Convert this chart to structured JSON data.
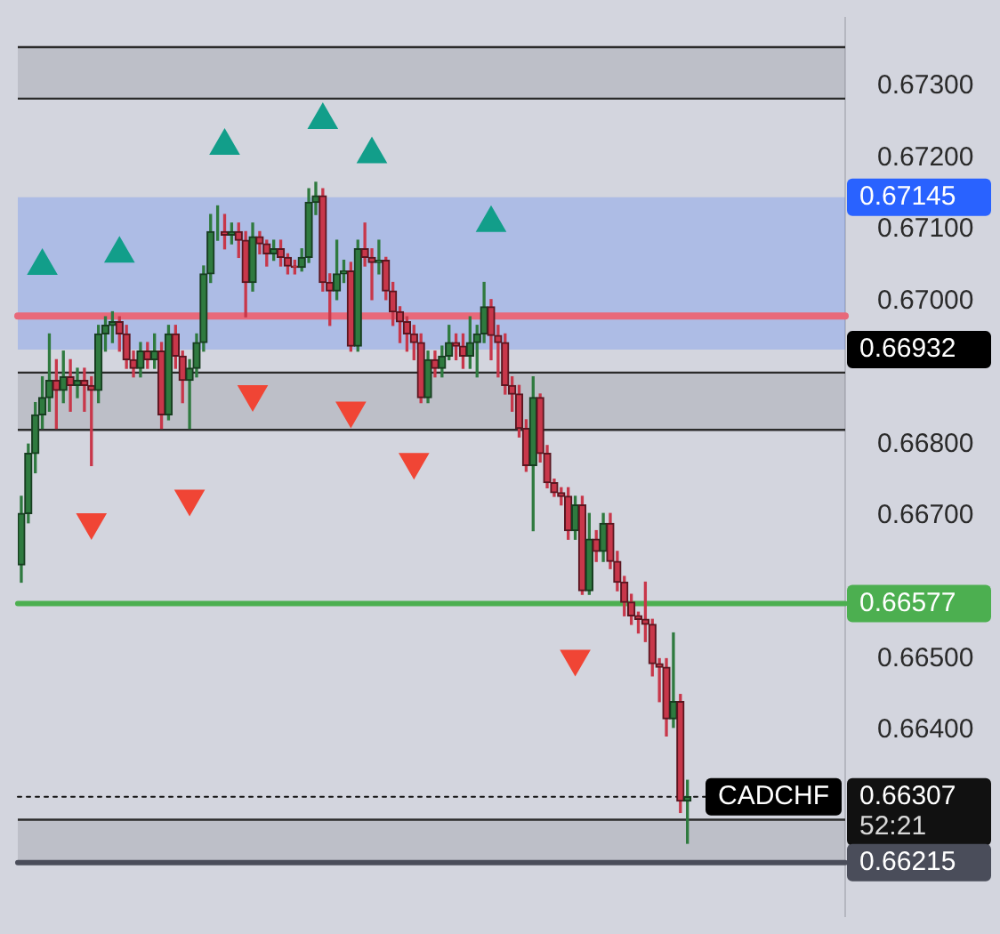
{
  "chart_data": {
    "type": "candlestick",
    "categories": [
      null,
      null,
      null,
      null,
      null,
      null,
      null,
      null,
      null,
      null,
      null,
      null,
      null,
      null,
      null,
      null,
      null,
      null,
      null,
      null,
      null,
      null,
      null,
      null,
      null,
      null,
      null,
      null,
      null,
      null,
      null,
      null,
      null,
      null,
      null,
      null,
      null,
      null,
      null,
      null,
      null,
      null,
      null,
      null,
      null,
      null,
      null,
      null,
      null,
      null,
      null,
      null,
      null,
      null,
      null,
      null,
      null,
      null,
      null,
      null,
      null,
      null,
      null,
      null,
      null,
      null,
      null,
      null,
      null,
      null,
      null,
      null,
      null,
      null,
      null,
      null,
      null,
      null,
      null,
      null,
      null,
      null,
      null,
      null,
      null,
      null,
      null,
      null,
      null,
      null,
      null,
      null,
      null,
      null,
      null,
      null,
      null,
      null,
      null,
      null,
      null,
      null,
      null,
      null,
      null,
      null,
      null,
      null,
      null,
      null,
      null,
      null,
      null,
      null,
      null,
      null,
      null,
      null
    ],
    "ohlc": [
      [
        0.66631,
        0.66727,
        0.66607,
        0.66703
      ],
      [
        0.66703,
        0.668,
        0.6669,
        0.66787
      ],
      [
        0.66787,
        0.66858,
        0.6676,
        0.66841
      ],
      [
        0.66841,
        0.66894,
        0.66822,
        0.66865
      ],
      [
        0.66865,
        0.66954,
        0.66846,
        0.66889
      ],
      [
        0.66889,
        0.66918,
        0.66822,
        0.66875
      ],
      [
        0.66875,
        0.6693,
        0.66858,
        0.66894
      ],
      [
        0.66894,
        0.66918,
        0.66846,
        0.66882
      ],
      [
        0.66882,
        0.66906,
        0.66865,
        0.66889
      ],
      [
        0.66889,
        0.66906,
        0.66846,
        0.66882
      ],
      [
        0.66882,
        0.66894,
        0.6677,
        0.66875
      ],
      [
        0.66875,
        0.66966,
        0.66858,
        0.66954
      ],
      [
        0.66954,
        0.66978,
        0.6693,
        0.66966
      ],
      [
        0.66966,
        0.66985,
        0.66942,
        0.66971
      ],
      [
        0.66971,
        0.66978,
        0.6693,
        0.66954
      ],
      [
        0.66954,
        0.66966,
        0.66906,
        0.66918
      ],
      [
        0.66918,
        0.6693,
        0.66894,
        0.66906
      ],
      [
        0.66906,
        0.66942,
        0.66894,
        0.6693
      ],
      [
        0.6693,
        0.66942,
        0.66906,
        0.66918
      ],
      [
        0.66918,
        0.66954,
        0.66906,
        0.6693
      ],
      [
        0.6693,
        0.66942,
        0.66822,
        0.66841
      ],
      [
        0.66841,
        0.66966,
        0.66834,
        0.66954
      ],
      [
        0.66954,
        0.66966,
        0.66906,
        0.66923
      ],
      [
        0.66923,
        0.6693,
        0.66858,
        0.66889
      ],
      [
        0.66889,
        0.66918,
        0.66822,
        0.66906
      ],
      [
        0.66906,
        0.66954,
        0.66894,
        0.66942
      ],
      [
        0.66942,
        0.67049,
        0.6693,
        0.67038
      ],
      [
        0.67038,
        0.67121,
        0.67026,
        0.67097
      ],
      [
        0.67097,
        0.67133,
        0.67085,
        0.67097
      ],
      [
        0.67097,
        0.67121,
        0.67073,
        0.67092
      ],
      [
        0.67092,
        0.67109,
        0.6708,
        0.67097
      ],
      [
        0.67097,
        0.67109,
        0.67061,
        0.67085
      ],
      [
        0.67085,
        0.67097,
        0.66978,
        0.67026
      ],
      [
        0.67026,
        0.67109,
        0.67014,
        0.6709
      ],
      [
        0.6709,
        0.67097,
        0.67066,
        0.6708
      ],
      [
        0.6708,
        0.67085,
        0.67049,
        0.67066
      ],
      [
        0.67066,
        0.67085,
        0.67057,
        0.67073
      ],
      [
        0.67073,
        0.67085,
        0.67049,
        0.67061
      ],
      [
        0.67061,
        0.67066,
        0.67038,
        0.67049
      ],
      [
        0.67049,
        0.67057,
        0.67038,
        0.67047
      ],
      [
        0.67047,
        0.67073,
        0.67042,
        0.67061
      ],
      [
        0.67061,
        0.67157,
        0.67054,
        0.67138
      ],
      [
        0.67138,
        0.67166,
        0.67121,
        0.67147
      ],
      [
        0.67147,
        0.67157,
        0.67014,
        0.67026
      ],
      [
        0.67026,
        0.67038,
        0.66966,
        0.67014
      ],
      [
        0.67014,
        0.67085,
        0.67002,
        0.67038
      ],
      [
        0.67038,
        0.67057,
        0.67026,
        0.67042
      ],
      [
        0.67042,
        0.67054,
        0.6693,
        0.66937
      ],
      [
        0.66937,
        0.67085,
        0.6693,
        0.67073
      ],
      [
        0.67073,
        0.67109,
        0.67049,
        0.67061
      ],
      [
        0.67061,
        0.67073,
        0.67002,
        0.67054
      ],
      [
        0.67054,
        0.67085,
        0.67038,
        0.67057
      ],
      [
        0.67057,
        0.67061,
        0.67002,
        0.67014
      ],
      [
        0.67014,
        0.67026,
        0.66966,
        0.66985
      ],
      [
        0.66985,
        0.66992,
        0.66942,
        0.66971
      ],
      [
        0.66971,
        0.66978,
        0.6693,
        0.66954
      ],
      [
        0.66954,
        0.66966,
        0.66918,
        0.66942
      ],
      [
        0.66942,
        0.66954,
        0.66858,
        0.66865
      ],
      [
        0.66865,
        0.6693,
        0.66858,
        0.66918
      ],
      [
        0.66918,
        0.6693,
        0.66894,
        0.66906
      ],
      [
        0.66906,
        0.66937,
        0.66894,
        0.66923
      ],
      [
        0.66923,
        0.66966,
        0.66918,
        0.66942
      ],
      [
        0.66942,
        0.66954,
        0.66918,
        0.66937
      ],
      [
        0.66937,
        0.66954,
        0.66906,
        0.66923
      ],
      [
        0.66923,
        0.66978,
        0.66906,
        0.66942
      ],
      [
        0.66942,
        0.66966,
        0.66894,
        0.66954
      ],
      [
        0.66954,
        0.67026,
        0.66942,
        0.66992
      ],
      [
        0.66992,
        0.67002,
        0.66918,
        0.66952
      ],
      [
        0.66952,
        0.66966,
        0.66894,
        0.66942
      ],
      [
        0.66942,
        0.66954,
        0.6687,
        0.66882
      ],
      [
        0.66882,
        0.66894,
        0.66846,
        0.6687
      ],
      [
        0.6687,
        0.66882,
        0.6681,
        0.66822
      ],
      [
        0.66822,
        0.66834,
        0.66762,
        0.6677
      ],
      [
        0.6677,
        0.66894,
        0.66679,
        0.66865
      ],
      [
        0.66865,
        0.6687,
        0.66775,
        0.66787
      ],
      [
        0.66787,
        0.66798,
        0.66739,
        0.66746
      ],
      [
        0.66746,
        0.66751,
        0.66727,
        0.66732
      ],
      [
        0.66732,
        0.66739,
        0.66715,
        0.66727
      ],
      [
        0.66727,
        0.66739,
        0.66667,
        0.66679
      ],
      [
        0.66679,
        0.66727,
        0.66667,
        0.66715
      ],
      [
        0.66715,
        0.66727,
        0.6659,
        0.66595
      ],
      [
        0.66595,
        0.66703,
        0.6659,
        0.66667
      ],
      [
        0.66667,
        0.66679,
        0.66636,
        0.6665
      ],
      [
        0.6665,
        0.66703,
        0.66636,
        0.66689
      ],
      [
        0.66689,
        0.66703,
        0.66626,
        0.66636
      ],
      [
        0.66636,
        0.6665,
        0.66595,
        0.66607
      ],
      [
        0.66607,
        0.66615,
        0.6656,
        0.66579
      ],
      [
        0.66579,
        0.6659,
        0.66548,
        0.6656
      ],
      [
        0.6656,
        0.66565,
        0.66536,
        0.66555
      ],
      [
        0.66555,
        0.66607,
        0.66524,
        0.66548
      ],
      [
        0.66548,
        0.66555,
        0.66476,
        0.66493
      ],
      [
        0.66493,
        0.665,
        0.6644,
        0.66488
      ],
      [
        0.66488,
        0.665,
        0.66392,
        0.66416
      ],
      [
        0.66416,
        0.66536,
        0.66404,
        0.6644
      ],
      [
        0.6644,
        0.6645,
        0.66285,
        0.66301
      ],
      [
        0.66301,
        0.6633,
        0.66242,
        0.66307
      ],
      null,
      null,
      null,
      null,
      null,
      null,
      null,
      null,
      null,
      null,
      null,
      null,
      null,
      null,
      null,
      null,
      null,
      null,
      null,
      null,
      null,
      null
    ],
    "series": [
      {
        "type": "scatter",
        "color": "#129e8a",
        "marker": "triangle",
        "values": [
          null,
          null,
          null,
          0.67049,
          null,
          null,
          null,
          null,
          null,
          null,
          null,
          null,
          null,
          null,
          0.67066,
          null,
          null,
          null,
          null,
          null,
          null,
          null,
          null,
          null,
          null,
          null,
          null,
          null,
          null,
          0.67217,
          null,
          null,
          null,
          null,
          null,
          null,
          null,
          null,
          null,
          null,
          null,
          null,
          null,
          0.67253,
          null,
          null,
          null,
          null,
          null,
          null,
          0.67205,
          null,
          null,
          null,
          null,
          null,
          null,
          null,
          null,
          null,
          null,
          null,
          null,
          null,
          null,
          null,
          null,
          0.67109,
          null,
          null,
          null,
          null,
          null,
          null,
          null,
          null,
          null,
          null,
          null,
          null,
          null,
          null,
          null,
          null,
          null,
          null,
          null,
          null,
          null,
          null,
          null,
          null,
          null,
          null,
          null,
          null,
          null,
          null,
          null,
          null,
          null,
          null,
          null,
          null,
          null,
          null,
          null,
          null,
          null,
          null,
          null,
          null,
          null,
          null,
          null,
          null,
          null,
          null
        ]
      },
      {
        "type": "scatter",
        "color": "#f04535",
        "marker": "triangle-down",
        "values": [
          null,
          null,
          null,
          null,
          null,
          null,
          null,
          null,
          null,
          null,
          0.66691,
          null,
          null,
          null,
          null,
          null,
          null,
          null,
          null,
          null,
          null,
          null,
          null,
          null,
          0.66724,
          null,
          null,
          null,
          null,
          null,
          null,
          null,
          null,
          0.6687,
          null,
          null,
          null,
          null,
          null,
          null,
          null,
          null,
          null,
          null,
          null,
          null,
          null,
          0.66847,
          null,
          null,
          null,
          null,
          null,
          null,
          null,
          null,
          0.66775,
          null,
          null,
          null,
          null,
          null,
          null,
          null,
          null,
          null,
          null,
          null,
          null,
          null,
          null,
          null,
          null,
          null,
          null,
          null,
          null,
          null,
          null,
          0.665,
          null,
          null,
          null,
          null,
          null,
          null,
          null,
          null,
          null,
          null,
          null,
          null,
          null,
          null,
          null,
          null,
          null,
          null,
          null,
          null,
          null,
          null,
          null,
          null,
          null,
          null,
          null,
          null,
          null,
          null,
          null,
          null,
          null,
          null,
          null,
          null,
          null,
          null
        ]
      }
    ],
    "ylim": [
      0.6614,
      0.67396
    ],
    "yticks": [
      {
        "value": 0.664,
        "label": "0.66400"
      },
      {
        "value": 0.665,
        "label": "0.66500"
      },
      {
        "value": 0.667,
        "label": "0.66700"
      },
      {
        "value": 0.668,
        "label": "0.66800"
      },
      {
        "value": 0.67,
        "label": "0.67000"
      },
      {
        "value": 0.671,
        "label": "0.67100"
      },
      {
        "value": 0.672,
        "label": "0.67200"
      },
      {
        "value": 0.673,
        "label": "0.67300"
      }
    ],
    "tick_labels": "y",
    "grid": false,
    "legend": false,
    "bands": [
      {
        "axis": "y",
        "from": 0.67283,
        "to": 0.67355,
        "color": "#70737d"
      },
      {
        "axis": "y",
        "from": 0.6682,
        "to": 0.669,
        "color": "#70737d"
      },
      {
        "axis": "y",
        "from": 0.66215,
        "to": 0.66275,
        "color": "#70737d"
      },
      {
        "axis": "y",
        "from": 0.66932,
        "to": 0.67145,
        "color": "#2962ff",
        "label": "0.67145"
      }
    ],
    "ref_lines": [
      {
        "axis": "y",
        "value": 0.66979,
        "color": "#e8697a",
        "line_style": "solid"
      },
      {
        "axis": "y",
        "value": 0.66577,
        "color": "#4caf50",
        "line_style": "solid",
        "label": "0.66577"
      },
      {
        "axis": "y",
        "value": 0.66307,
        "color": "#111111",
        "line_style": "dotted",
        "label": "0.66307\n52:21"
      },
      {
        "axis": "y",
        "value": 0.66215,
        "color": "#4a4d5a",
        "line_style": "solid",
        "label": "0.66215"
      }
    ],
    "annotations": [
      "0.66932",
      {
        "text": "CADCHF",
        "y": 0.66307
      }
    ]
  }
}
